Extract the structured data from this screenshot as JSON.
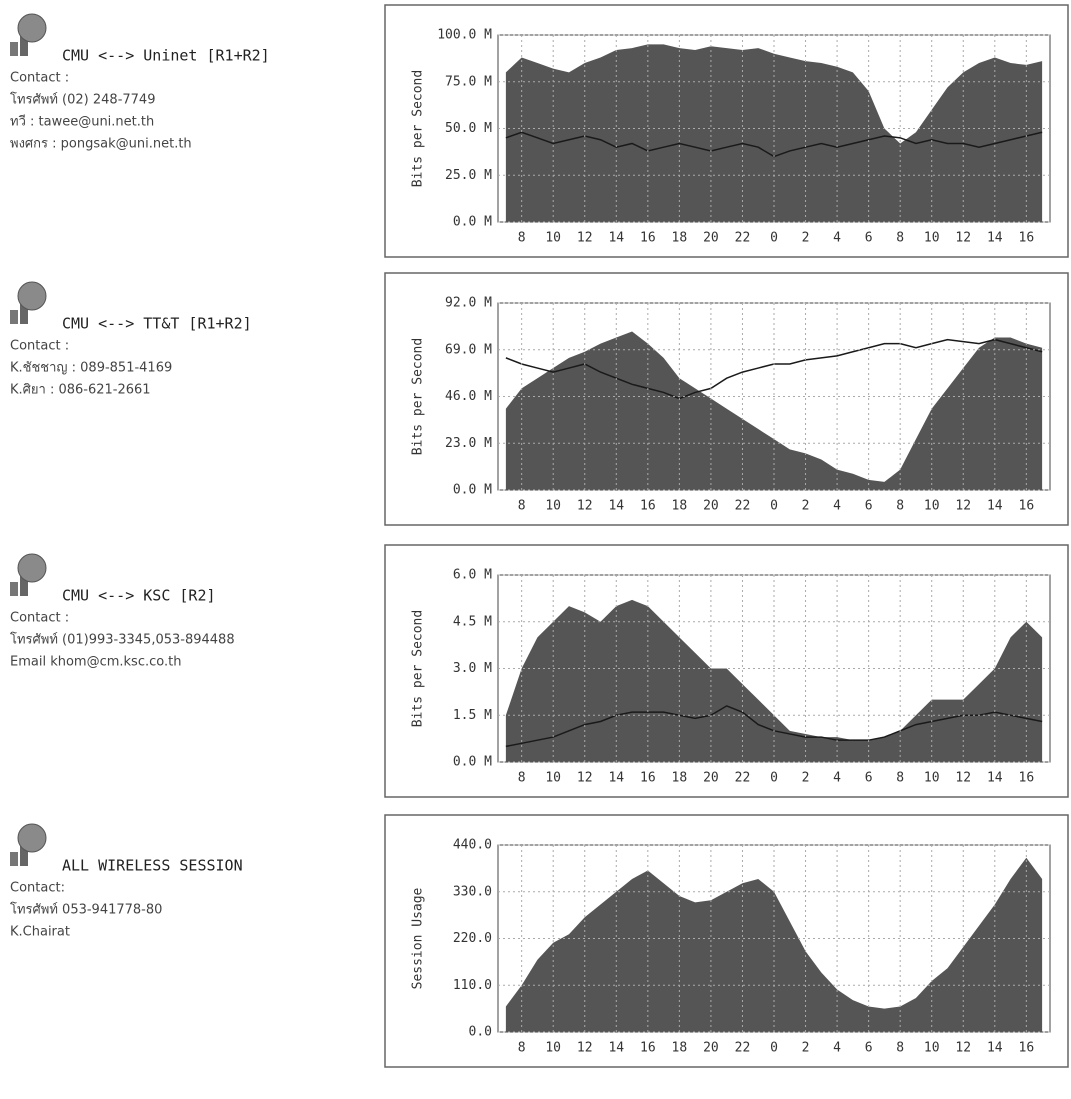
{
  "panels": [
    {
      "title": "CMU <--> Uninet [R1+R2]",
      "contact": [
        "Contact :",
        "โทรศัพท์ (02) 248-7749",
        "ทวี : tawee@uni.net.th",
        "พงศกร : pongsak@uni.net.th"
      ]
    },
    {
      "title": "CMU <--> TT&T [R1+R2]",
      "contact": [
        "Contact :",
        "K.ชัชชาญ : 089-851-4169",
        "K.ศิยา : 086-621-2661"
      ]
    },
    {
      "title": "CMU <--> KSC [R2]",
      "contact": [
        "Contact :",
        "โทรศัพท์ (01)993-3345,053-894488",
        "Email khom@cm.ksc.co.th"
      ]
    },
    {
      "title": "ALL WIRELESS SESSION",
      "contact": [
        "Contact:",
        "โทรศัพท์ 053-941778-80",
        "K.Chairat"
      ]
    }
  ],
  "chart_data": [
    {
      "type": "area",
      "y_label": "Bits per Second",
      "grid": true,
      "categories": [
        null,
        "8",
        null,
        "10",
        null,
        "12",
        null,
        "14",
        null,
        "16",
        null,
        "18",
        null,
        "20",
        null,
        "22",
        null,
        "0",
        null,
        "2",
        null,
        "4",
        null,
        "6",
        null,
        "8",
        null,
        "10",
        null,
        "12",
        null,
        "14",
        null,
        "16",
        null
      ],
      "ylim": [
        0,
        100
      ],
      "yticks": [
        {
          "value": 0,
          "label": "0.0 M"
        },
        {
          "value": 25,
          "label": "25.0 M"
        },
        {
          "value": 50,
          "label": "50.0 M"
        },
        {
          "value": 75,
          "label": "75.0 M"
        },
        {
          "value": 100,
          "label": "100.0 M"
        }
      ],
      "series": [
        {
          "style": "area",
          "color": "#555555",
          "values": [
            80,
            88,
            85,
            82,
            80,
            85,
            88,
            92,
            93,
            95,
            95,
            93,
            92,
            94,
            93,
            92,
            93,
            90,
            88,
            86,
            85,
            83,
            80,
            70,
            50,
            42,
            48,
            60,
            72,
            80,
            85,
            88,
            85,
            84,
            86
          ]
        },
        {
          "style": "line",
          "color": "#1a1a1a",
          "values": [
            45,
            48,
            45,
            42,
            44,
            46,
            44,
            40,
            42,
            38,
            40,
            42,
            40,
            38,
            40,
            42,
            40,
            35,
            38,
            40,
            42,
            40,
            42,
            44,
            46,
            45,
            42,
            44,
            42,
            42,
            40,
            42,
            44,
            46,
            48
          ]
        }
      ]
    },
    {
      "type": "area",
      "y_label": "Bits per Second",
      "grid": true,
      "categories": [
        null,
        "8",
        null,
        "10",
        null,
        "12",
        null,
        "14",
        null,
        "16",
        null,
        "18",
        null,
        "20",
        null,
        "22",
        null,
        "0",
        null,
        "2",
        null,
        "4",
        null,
        "6",
        null,
        "8",
        null,
        "10",
        null,
        "12",
        null,
        "14",
        null,
        "16",
        null
      ],
      "ylim": [
        0,
        92
      ],
      "yticks": [
        {
          "value": 0,
          "label": "0.0 M"
        },
        {
          "value": 23,
          "label": "23.0 M"
        },
        {
          "value": 46,
          "label": "46.0 M"
        },
        {
          "value": 69,
          "label": "69.0 M"
        },
        {
          "value": 92,
          "label": "92.0 M"
        }
      ],
      "series": [
        {
          "style": "area",
          "color": "#555555",
          "values": [
            40,
            50,
            55,
            60,
            65,
            68,
            72,
            75,
            78,
            72,
            65,
            55,
            50,
            45,
            40,
            35,
            30,
            25,
            20,
            18,
            15,
            10,
            8,
            5,
            4,
            10,
            25,
            40,
            50,
            60,
            70,
            75,
            75,
            72,
            70
          ]
        },
        {
          "style": "line",
          "color": "#1a1a1a",
          "values": [
            65,
            62,
            60,
            58,
            60,
            62,
            58,
            55,
            52,
            50,
            48,
            45,
            48,
            50,
            55,
            58,
            60,
            62,
            62,
            64,
            65,
            66,
            68,
            70,
            72,
            72,
            70,
            72,
            74,
            73,
            72,
            74,
            72,
            70,
            68
          ]
        }
      ]
    },
    {
      "type": "area",
      "y_label": "Bits per Second",
      "grid": true,
      "categories": [
        null,
        "8",
        null,
        "10",
        null,
        "12",
        null,
        "14",
        null,
        "16",
        null,
        "18",
        null,
        "20",
        null,
        "22",
        null,
        "0",
        null,
        "2",
        null,
        "4",
        null,
        "6",
        null,
        "8",
        null,
        "10",
        null,
        "12",
        null,
        "14",
        null,
        "16",
        null
      ],
      "ylim": [
        0,
        6
      ],
      "yticks": [
        {
          "value": 0,
          "label": "0.0 M"
        },
        {
          "value": 1.5,
          "label": "1.5 M"
        },
        {
          "value": 3,
          "label": "3.0 M"
        },
        {
          "value": 4.5,
          "label": "4.5 M"
        },
        {
          "value": 6,
          "label": "6.0 M"
        }
      ],
      "series": [
        {
          "style": "area",
          "color": "#555555",
          "values": [
            1.5,
            3,
            4,
            4.5,
            5,
            4.8,
            4.5,
            5,
            5.2,
            5,
            4.5,
            4,
            3.5,
            3,
            3,
            2.5,
            2,
            1.5,
            1,
            0.9,
            0.8,
            0.8,
            0.7,
            0.7,
            0.8,
            1,
            1.5,
            2,
            2,
            2,
            2.5,
            3,
            4,
            4.5,
            4
          ]
        },
        {
          "style": "line",
          "color": "#1a1a1a",
          "values": [
            0.5,
            0.6,
            0.7,
            0.8,
            1,
            1.2,
            1.3,
            1.5,
            1.6,
            1.6,
            1.6,
            1.5,
            1.4,
            1.5,
            1.8,
            1.6,
            1.2,
            1,
            0.9,
            0.8,
            0.8,
            0.7,
            0.7,
            0.7,
            0.8,
            1,
            1.2,
            1.3,
            1.4,
            1.5,
            1.5,
            1.6,
            1.5,
            1.4,
            1.3
          ]
        }
      ]
    },
    {
      "type": "area",
      "y_label": "Session Usage",
      "grid": true,
      "categories": [
        null,
        "8",
        null,
        "10",
        null,
        "12",
        null,
        "14",
        null,
        "16",
        null,
        "18",
        null,
        "20",
        null,
        "22",
        null,
        "0",
        null,
        "2",
        null,
        "4",
        null,
        "6",
        null,
        "8",
        null,
        "10",
        null,
        "12",
        null,
        "14",
        null,
        "16",
        null
      ],
      "ylim": [
        0,
        440
      ],
      "yticks": [
        {
          "value": 0,
          "label": "0.0"
        },
        {
          "value": 110,
          "label": "110.0"
        },
        {
          "value": 220,
          "label": "220.0"
        },
        {
          "value": 330,
          "label": "330.0"
        },
        {
          "value": 440,
          "label": "440.0"
        }
      ],
      "series": [
        {
          "style": "area",
          "color": "#555555",
          "values": [
            60,
            110,
            170,
            210,
            230,
            270,
            300,
            330,
            360,
            380,
            350,
            320,
            305,
            310,
            330,
            350,
            360,
            330,
            260,
            190,
            140,
            100,
            75,
            60,
            55,
            60,
            80,
            120,
            150,
            200,
            250,
            300,
            360,
            410,
            360
          ]
        }
      ]
    }
  ]
}
